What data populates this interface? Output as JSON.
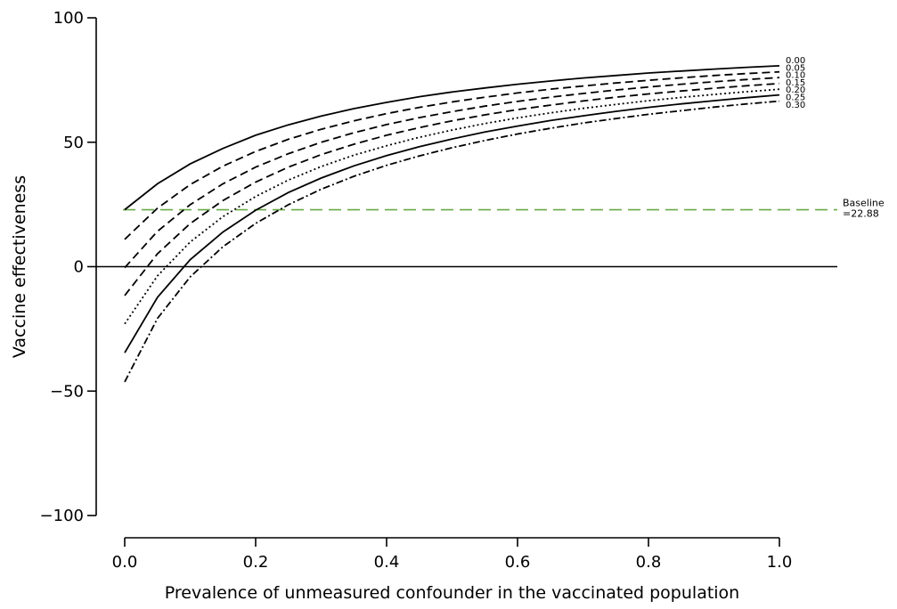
{
  "chart_data": {
    "type": "line",
    "title": "",
    "xlabel": "Prevalence of unmeasured confounder in the vaccinated population",
    "ylabel": "Vaccine effectiveness",
    "xlim": [
      0,
      1
    ],
    "ylim": [
      -100,
      100
    ],
    "x_ticks": [
      0.0,
      0.2,
      0.4,
      0.6,
      0.8,
      1.0
    ],
    "x_tick_labels": [
      "0.0",
      "0.2",
      "0.4",
      "0.6",
      "0.8",
      "1.0"
    ],
    "y_ticks": [
      -100,
      -50,
      0,
      50,
      100
    ],
    "y_tick_labels": [
      "−100",
      "−50",
      "0",
      "50",
      "100"
    ],
    "x": [
      0.0,
      0.05,
      0.1,
      0.15,
      0.2,
      0.25,
      0.3,
      0.35,
      0.4,
      0.45,
      0.5,
      0.55,
      0.6,
      0.65,
      0.7,
      0.75,
      0.8,
      0.85,
      0.9,
      0.95,
      1.0
    ],
    "series": [
      {
        "name": "0.00",
        "dash": "solid",
        "values": [
          22.9,
          33.3,
          41.3,
          47.5,
          52.8,
          57.0,
          60.5,
          63.5,
          66.0,
          68.3,
          70.2,
          71.8,
          73.3,
          74.6,
          75.8,
          76.8,
          77.8,
          78.6,
          79.4,
          80.1,
          80.7
        ]
      },
      {
        "name": "0.05",
        "dash": "dashed",
        "values": [
          11.0,
          23.5,
          33.0,
          40.4,
          46.3,
          51.2,
          55.2,
          58.6,
          61.5,
          64.0,
          66.2,
          68.1,
          69.8,
          71.3,
          72.6,
          73.8,
          74.9,
          75.9,
          76.8,
          77.6,
          78.3
        ]
      },
      {
        "name": "0.10",
        "dash": "dashed",
        "values": [
          -0.4,
          14.2,
          24.9,
          33.3,
          40.0,
          45.4,
          50.0,
          53.8,
          57.1,
          59.9,
          62.3,
          64.5,
          66.4,
          68.1,
          69.6,
          71.0,
          72.2,
          73.3,
          74.3,
          75.2,
          76.0
        ]
      },
      {
        "name": "0.15",
        "dash": "dashed",
        "values": [
          -11.6,
          5.2,
          17.3,
          26.6,
          34.0,
          40.0,
          45.0,
          49.2,
          52.8,
          55.9,
          58.6,
          61.0,
          63.1,
          64.9,
          66.6,
          68.1,
          69.4,
          70.6,
          71.7,
          72.7,
          73.6
        ]
      },
      {
        "name": "0.20",
        "dash": "dotted",
        "values": [
          -23.0,
          -3.7,
          9.9,
          20.1,
          28.2,
          34.8,
          40.2,
          44.8,
          48.6,
          52.0,
          54.9,
          57.5,
          59.8,
          61.8,
          63.6,
          65.2,
          66.7,
          68.0,
          69.2,
          70.3,
          71.3
        ]
      },
      {
        "name": "0.25",
        "dash": "solid",
        "values": [
          -34.6,
          -12.3,
          2.8,
          13.9,
          22.7,
          29.8,
          35.6,
          40.5,
          44.6,
          48.2,
          51.3,
          54.1,
          56.5,
          58.7,
          60.6,
          62.4,
          64.0,
          65.4,
          66.7,
          67.9,
          69.0
        ]
      },
      {
        "name": "0.30",
        "dash": "dashdot",
        "values": [
          -46.3,
          -20.8,
          -4.1,
          8.0,
          17.4,
          24.9,
          31.1,
          36.3,
          40.7,
          44.5,
          47.8,
          50.7,
          53.3,
          55.6,
          57.7,
          59.5,
          61.2,
          62.7,
          64.1,
          65.4,
          66.5
        ]
      }
    ],
    "series_labels": [
      "0.00",
      "0.05",
      "0.10",
      "0.15",
      "0.20",
      "0.25",
      "0.30"
    ],
    "reference_lines": [
      {
        "y": 0,
        "color": "#000000",
        "style": "solid"
      },
      {
        "y": 22.88,
        "color": "#6aaa48",
        "style": "dashed",
        "label_line1": "Baseline",
        "label_line2": "=22.88"
      }
    ],
    "grid": false,
    "legend": "inline-right"
  }
}
